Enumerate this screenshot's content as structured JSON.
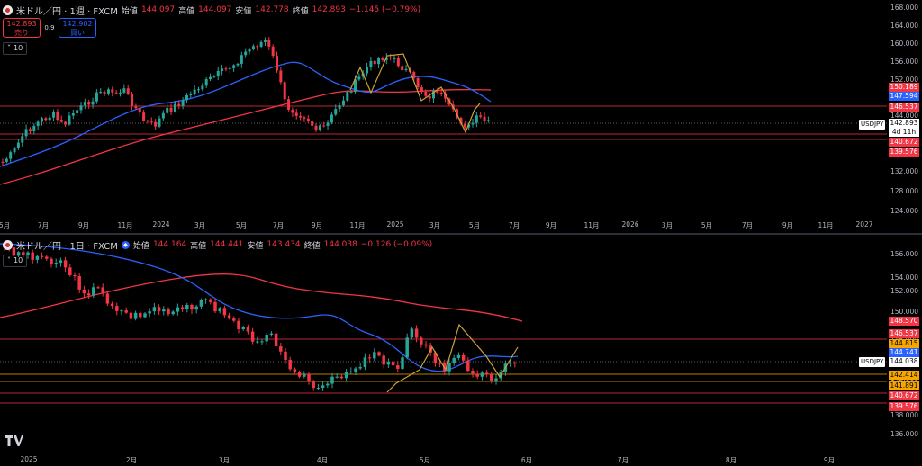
{
  "top": {
    "symbol": "米ドル／円 · 1週 · FXCM",
    "open_label": "始値",
    "open": "144.097",
    "high_label": "高値",
    "high": "144.097",
    "low_label": "安値",
    "low": "142.778",
    "close_label": "終値",
    "close": "142.893",
    "change": "−1.145 (−0.79%)",
    "sell_price": "142.893",
    "sell_label": "売り",
    "spread": "0.9",
    "buy_price": "142.902",
    "buy_label": "買い",
    "indicator": "10",
    "y_ticks": [
      "168.000",
      "164.000",
      "160.000",
      "156.000",
      "152.000",
      "148.000",
      "144.000",
      "140.000",
      "136.000",
      "132.000",
      "128.000",
      "124.000"
    ],
    "price_tags": [
      "150.189",
      "147.594",
      "146.537",
      "140.672",
      "139.576"
    ],
    "symbol_tag": "USDJPY",
    "last_price": "142.893",
    "countdown": "4d 11h",
    "x_ticks": [
      "5月",
      "7月",
      "9月",
      "11月",
      "2024",
      "3月",
      "5月",
      "7月",
      "9月",
      "11月",
      "2025",
      "3月",
      "5月",
      "7月",
      "9月",
      "11月",
      "2026",
      "3月",
      "5月",
      "7月",
      "9月",
      "11月",
      "2027"
    ]
  },
  "bottom": {
    "symbol": "米ドル／円 · 1日 · FXCM",
    "open_label": "始値",
    "open": "144.164",
    "high_label": "高値",
    "high": "144.441",
    "low_label": "安値",
    "low": "143.434",
    "close_label": "終値",
    "close": "144.038",
    "change": "−0.126 (−0.09%)",
    "indicator": "10",
    "y_ticks": [
      "156.000",
      "154.000",
      "152.000",
      "150.000",
      "148.000",
      "146.000",
      "144.000",
      "142.000",
      "140.000",
      "138.000",
      "136.000"
    ],
    "price_tags": [
      "148.570",
      "146.537",
      "144.815",
      "144.741",
      "142.414",
      "141.891",
      "140.672",
      "139.576"
    ],
    "symbol_tag": "USDJPY",
    "last_price": "144.038",
    "x_ticks": [
      "2025",
      "2月",
      "3月",
      "4月",
      "5月",
      "6月",
      "7月",
      "8月",
      "9月"
    ]
  },
  "colors": {
    "up": "#26a69a",
    "down": "#f23645",
    "ma_fast": "#2962ff",
    "ma_slow": "#f23645",
    "zigzag": "#c8a23a",
    "level": "#f23645"
  }
}
